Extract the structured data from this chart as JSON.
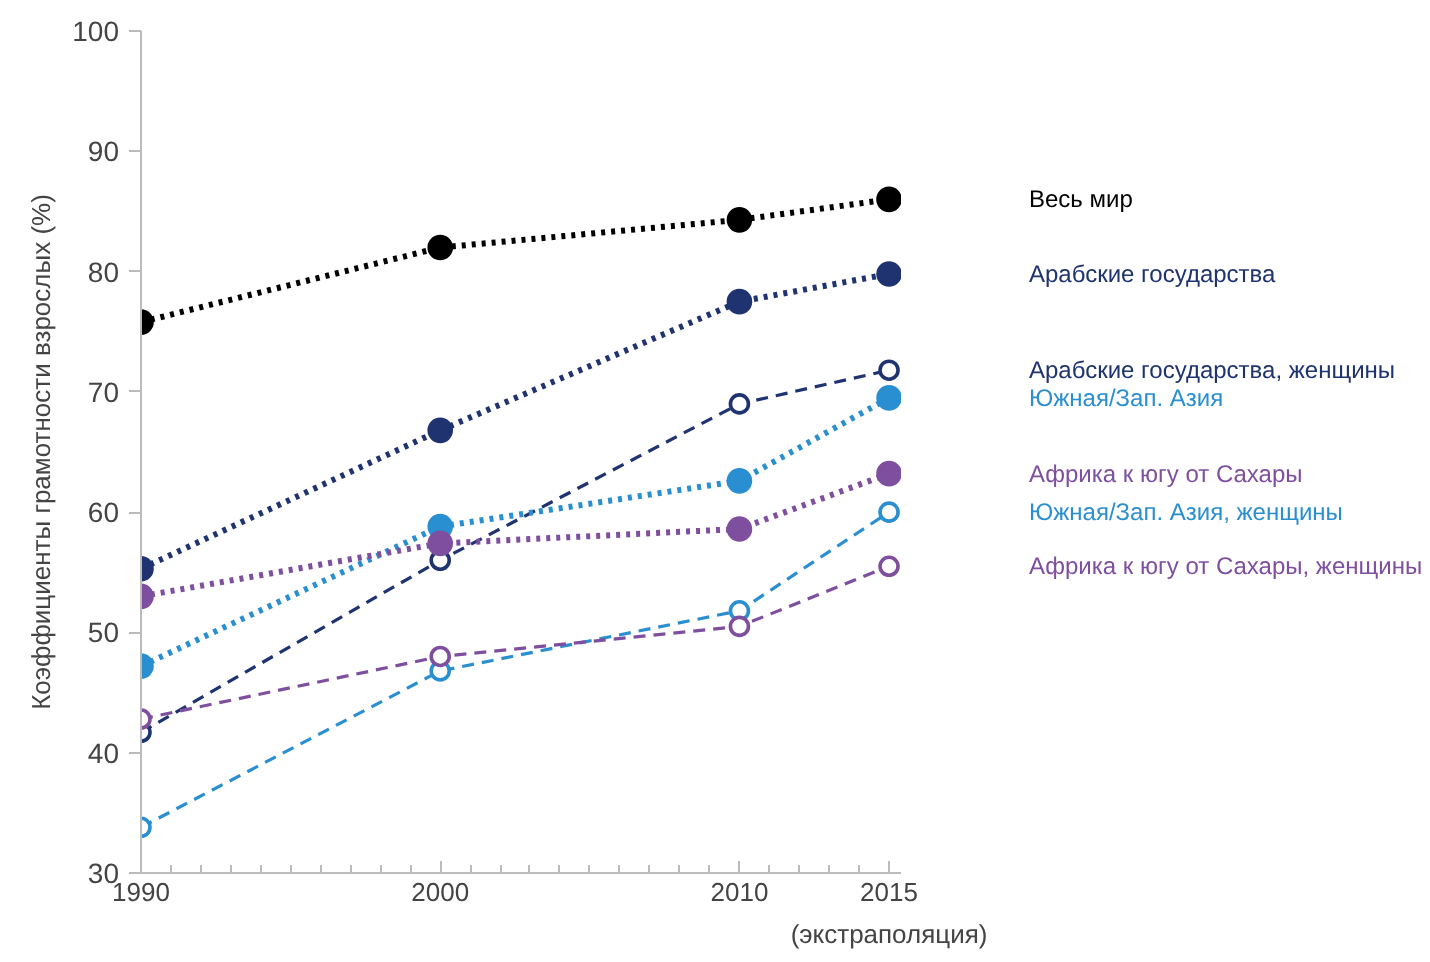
{
  "chart_data": {
    "type": "line",
    "ylabel": "Коэффициенты грамотности взрослых (%)",
    "x": [
      1990,
      2000,
      2010,
      2015
    ],
    "xlim": [
      1990,
      2015.4
    ],
    "xticks": [
      1990,
      2000,
      2010,
      {
        "value": 2015,
        "label": "2015\n(экстраполяция)"
      }
    ],
    "ylim": [
      30,
      100
    ],
    "yticks": [
      30,
      40,
      50,
      60,
      70,
      80,
      90,
      100
    ],
    "grid": false,
    "marker": "circle",
    "series": [
      {
        "name": "Весь мир",
        "color": "#000000",
        "line_style": "dotted",
        "values": [
          75.8,
          82.0,
          84.3,
          86.0
        ]
      },
      {
        "name": "Арабские государства",
        "color": "#1f3370",
        "line_style": "dotted",
        "values": [
          55.3,
          66.8,
          77.5,
          79.8
        ]
      },
      {
        "name": "Арабские государства, женщины",
        "color": "#1f3370",
        "line_style": "dashed",
        "values": [
          41.7,
          56.0,
          69.0,
          71.8
        ]
      },
      {
        "name": "Южная/Зап. Азия",
        "color": "#2a8fd0",
        "line_style": "dotted",
        "values": [
          47.2,
          58.8,
          62.6,
          69.5
        ]
      },
      {
        "name": "Африка к югу от Сахары",
        "color": "#7f4f9f",
        "line_style": "dotted",
        "values": [
          53.0,
          57.4,
          58.6,
          63.2
        ]
      },
      {
        "name": "Южная/Зап. Азия, женщины",
        "color": "#2a8fd0",
        "line_style": "dashed",
        "values": [
          33.8,
          46.8,
          51.8,
          60.0
        ]
      },
      {
        "name": "Африка к югу от Сахары, женщины",
        "color": "#7f4f9f",
        "line_style": "dashed",
        "values": [
          42.8,
          48.0,
          50.5,
          55.5
        ]
      }
    ]
  }
}
